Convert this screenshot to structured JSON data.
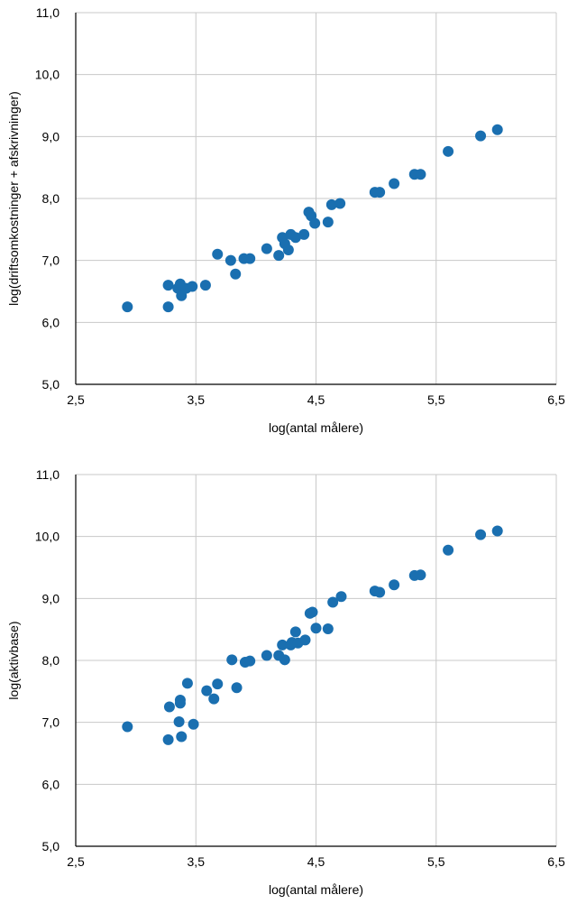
{
  "chart_data": [
    {
      "type": "scatter",
      "xlabel": "log(antal målere)",
      "ylabel": "log(driftsomkostninger + afskrivninger)",
      "xlim": [
        2.5,
        6.5
      ],
      "ylim": [
        5.0,
        11.0
      ],
      "x_ticks": [
        "2,5",
        "3,5",
        "4,5",
        "5,5",
        "6,5"
      ],
      "y_ticks": [
        "5,0",
        "6,0",
        "7,0",
        "8,0",
        "9,0",
        "10,0",
        "11,0"
      ],
      "grid": true,
      "marker_color": "#1a6fb0",
      "series": [
        {
          "points": [
            [
              2.93,
              6.25
            ],
            [
              3.27,
              6.25
            ],
            [
              3.27,
              6.6
            ],
            [
              3.35,
              6.55
            ],
            [
              3.37,
              6.62
            ],
            [
              3.38,
              6.43
            ],
            [
              3.42,
              6.55
            ],
            [
              3.47,
              6.58
            ],
            [
              3.58,
              6.6
            ],
            [
              3.68,
              7.1
            ],
            [
              3.79,
              7.0
            ],
            [
              3.83,
              6.78
            ],
            [
              3.9,
              7.03
            ],
            [
              3.95,
              7.03
            ],
            [
              4.09,
              7.19
            ],
            [
              4.19,
              7.08
            ],
            [
              4.22,
              7.37
            ],
            [
              4.24,
              7.27
            ],
            [
              4.27,
              7.17
            ],
            [
              4.29,
              7.42
            ],
            [
              4.33,
              7.37
            ],
            [
              4.4,
              7.42
            ],
            [
              4.44,
              7.78
            ],
            [
              4.46,
              7.72
            ],
            [
              4.49,
              7.6
            ],
            [
              4.6,
              7.62
            ],
            [
              4.63,
              7.9
            ],
            [
              4.7,
              7.92
            ],
            [
              4.99,
              8.1
            ],
            [
              5.03,
              8.1
            ],
            [
              5.15,
              8.24
            ],
            [
              5.32,
              8.39
            ],
            [
              5.37,
              8.39
            ],
            [
              5.6,
              8.76
            ],
            [
              5.87,
              9.01
            ],
            [
              6.01,
              9.11
            ]
          ]
        }
      ]
    },
    {
      "type": "scatter",
      "xlabel": "log(antal målere)",
      "ylabel": "log(aktivbase)",
      "xlim": [
        2.5,
        6.5
      ],
      "ylim": [
        5.0,
        11.0
      ],
      "x_ticks": [
        "2,5",
        "3,5",
        "4,5",
        "5,5",
        "6,5"
      ],
      "y_ticks": [
        "5,0",
        "6,0",
        "7,0",
        "8,0",
        "9,0",
        "10,0",
        "11,0"
      ],
      "grid": true,
      "marker_color": "#1a6fb0",
      "series": [
        {
          "points": [
            [
              2.93,
              6.93
            ],
            [
              3.27,
              6.72
            ],
            [
              3.28,
              7.25
            ],
            [
              3.36,
              7.01
            ],
            [
              3.37,
              7.31
            ],
            [
              3.37,
              7.36
            ],
            [
              3.38,
              6.77
            ],
            [
              3.43,
              7.63
            ],
            [
              3.48,
              6.97
            ],
            [
              3.59,
              7.51
            ],
            [
              3.65,
              7.38
            ],
            [
              3.68,
              7.62
            ],
            [
              3.8,
              8.01
            ],
            [
              3.84,
              7.56
            ],
            [
              3.91,
              7.97
            ],
            [
              3.95,
              7.99
            ],
            [
              4.09,
              8.08
            ],
            [
              4.19,
              8.08
            ],
            [
              4.22,
              8.25
            ],
            [
              4.24,
              8.01
            ],
            [
              4.29,
              8.25
            ],
            [
              4.3,
              8.29
            ],
            [
              4.33,
              8.46
            ],
            [
              4.35,
              8.28
            ],
            [
              4.41,
              8.33
            ],
            [
              4.45,
              8.76
            ],
            [
              4.47,
              8.78
            ],
            [
              4.5,
              8.52
            ],
            [
              4.6,
              8.51
            ],
            [
              4.64,
              8.94
            ],
            [
              4.71,
              9.03
            ],
            [
              4.99,
              9.12
            ],
            [
              5.03,
              9.1
            ],
            [
              5.15,
              9.22
            ],
            [
              5.32,
              9.37
            ],
            [
              5.37,
              9.38
            ],
            [
              5.6,
              9.78
            ],
            [
              5.87,
              10.03
            ],
            [
              6.01,
              10.09
            ]
          ]
        }
      ]
    }
  ]
}
